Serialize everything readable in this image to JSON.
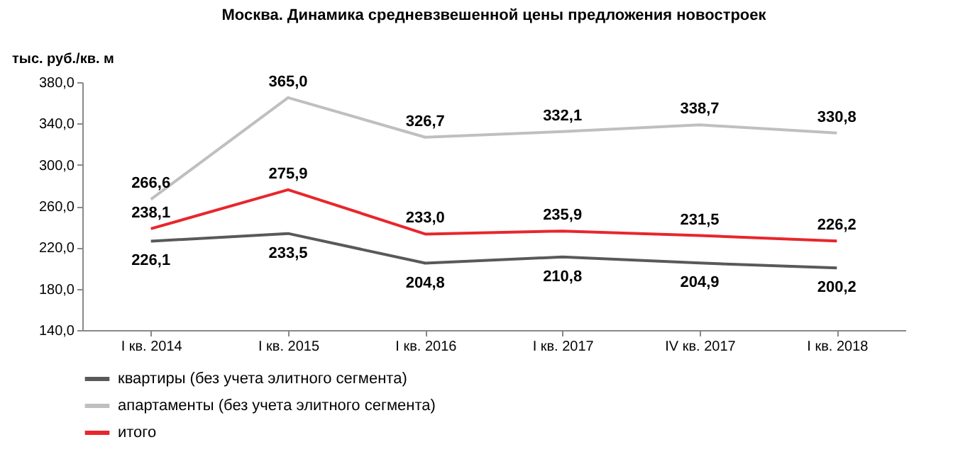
{
  "chart_data": {
    "type": "line",
    "title": "Москва. Динамика средневзвешенной цены предложения новостроек",
    "ylabel": "тыс. руб./кв.  м",
    "categories": [
      "I кв. 2014",
      "I кв. 2015",
      "I кв. 2016",
      "I кв. 2017",
      "IV кв. 2017",
      "I кв. 2018"
    ],
    "series": [
      {
        "name": "квартиры (без учета элитного сегмента)",
        "color": "#595959",
        "values": [
          226.1,
          233.5,
          204.8,
          210.8,
          204.9,
          200.2
        ],
        "value_labels": [
          "226,1",
          "233,5",
          "204,8",
          "210,8",
          "204,9",
          "200,2"
        ]
      },
      {
        "name": "апартаменты (без учета элитного сегмента)",
        "color": "#bfbfbf",
        "values": [
          266.6,
          365.0,
          326.7,
          332.1,
          338.7,
          330.8
        ],
        "value_labels": [
          "266,6",
          "365,0",
          "326,7",
          "332,1",
          "338,7",
          "330,8"
        ]
      },
      {
        "name": "итого",
        "color": "#e8262c",
        "values": [
          238.1,
          275.9,
          233.0,
          235.9,
          231.5,
          226.2
        ],
        "value_labels": [
          "238,1",
          "275,9",
          "233,0",
          "235,9",
          "231,5",
          "226,2"
        ]
      }
    ],
    "ylim": [
      140,
      380
    ],
    "yticks": [
      {
        "value": 140,
        "label": "140,0"
      },
      {
        "value": 180,
        "label": "180,0"
      },
      {
        "value": 220,
        "label": "220,0"
      },
      {
        "value": 260,
        "label": "260,0"
      },
      {
        "value": 300,
        "label": "300,0"
      },
      {
        "value": 340,
        "label": "340,0"
      },
      {
        "value": 380,
        "label": "380,0"
      }
    ],
    "legend": "bottom",
    "marker": "none",
    "line_style": "solid"
  }
}
